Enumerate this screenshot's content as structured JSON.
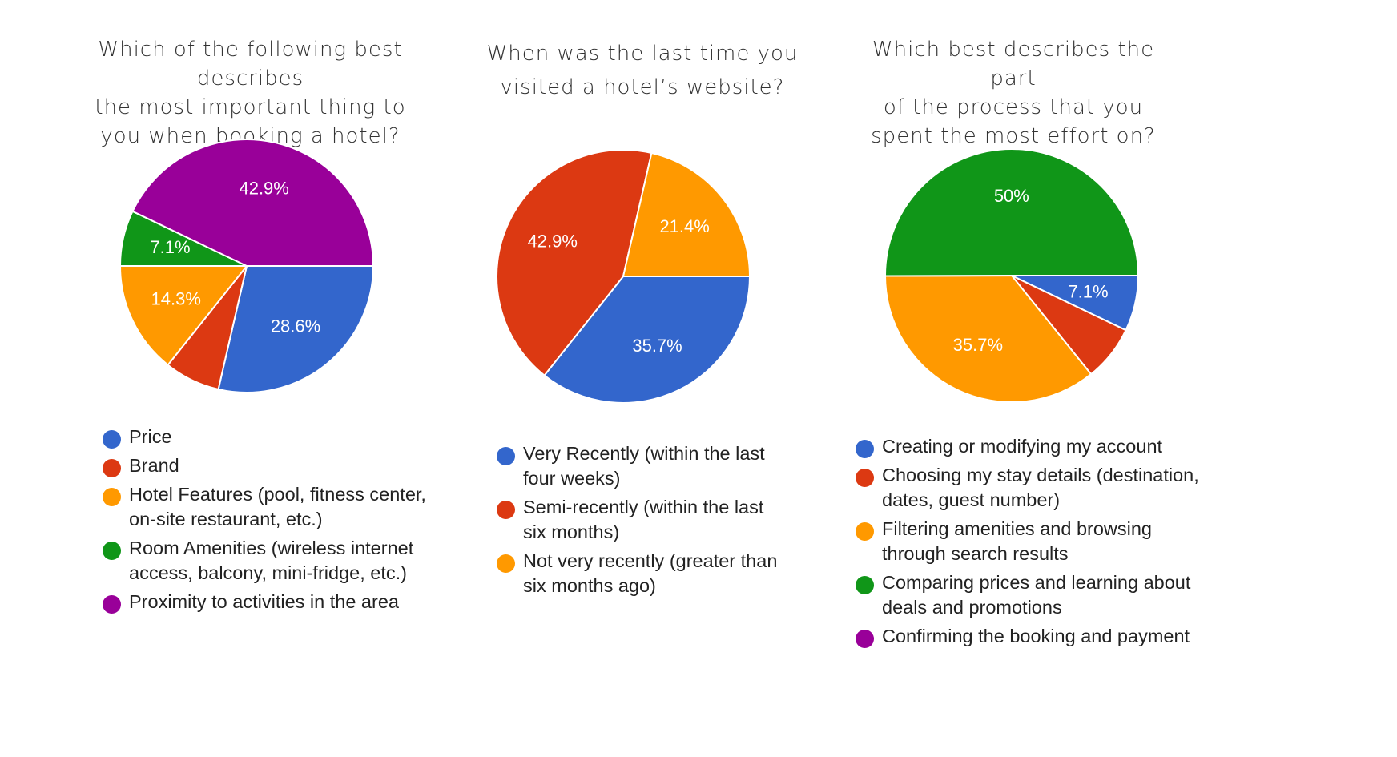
{
  "chart_data": [
    {
      "type": "pie",
      "title": "Which of the following best describes\nthe most important thing to\nyou when booking a hotel?",
      "slices": [
        {
          "label": "Price",
          "value": 28.6,
          "color": "#3366cc",
          "display": "28.6%"
        },
        {
          "label": "Brand",
          "value": 7.1,
          "color": "#dc3912",
          "display": ""
        },
        {
          "label": "Hotel Features (pool, fitness center, on-site restaurant, etc.)",
          "value": 14.3,
          "color": "#ff9900",
          "display": "14.3%"
        },
        {
          "label": "Room Amenities (wireless internet access, balcony, mini-fridge, etc.)",
          "value": 7.1,
          "color": "#109618",
          "display": "7.1%"
        },
        {
          "label": "Proximity to activities in the area",
          "value": 42.9,
          "color": "#990099",
          "display": "42.9%"
        }
      ]
    },
    {
      "type": "pie",
      "title": "When was the last time you\nvisited a hotel’s website?",
      "slices": [
        {
          "label": "Very Recently (within the last four weeks)",
          "value": 35.7,
          "color": "#3366cc",
          "display": "35.7%"
        },
        {
          "label": "Semi-recently (within the last six months)",
          "value": 42.9,
          "color": "#dc3912",
          "display": "42.9%"
        },
        {
          "label": "Not very recently (greater than six months ago)",
          "value": 21.4,
          "color": "#ff9900",
          "display": "21.4%"
        }
      ]
    },
    {
      "type": "pie",
      "title": "Which best describes the part\nof the process that you\nspent the  most effort on?",
      "slices": [
        {
          "label": "Creating or modifying my account",
          "value": 7.1,
          "color": "#3366cc",
          "display": "7.1%"
        },
        {
          "label": "Choosing my stay details (destination, dates, guest number)",
          "value": 7.1,
          "color": "#dc3912",
          "display": ""
        },
        {
          "label": "Filtering amenities and browsing through search results",
          "value": 35.7,
          "color": "#ff9900",
          "display": "35.7%"
        },
        {
          "label": "Comparing prices and learning about deals and promotions",
          "value": 50,
          "color": "#109618",
          "display": "50%"
        },
        {
          "label": "Confirming the booking and payment",
          "value": 0,
          "color": "#990099",
          "display": ""
        }
      ]
    }
  ]
}
